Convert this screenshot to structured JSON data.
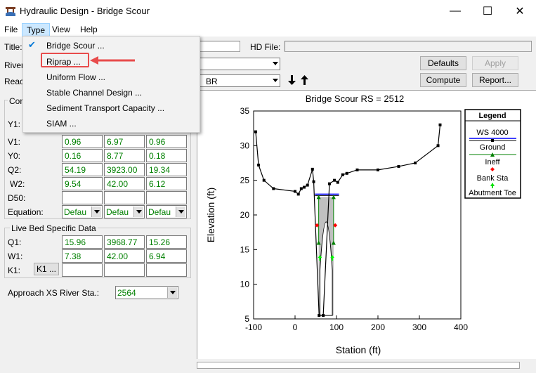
{
  "window": {
    "title": "Hydraulic Design - Bridge Scour",
    "minimize": "—",
    "maximize": "☐",
    "close": "✕"
  },
  "menubar": {
    "file": "File",
    "type": "Type",
    "view": "View",
    "help": "Help"
  },
  "header": {
    "title_label": "Title:",
    "hd_file_label": "HD File:",
    "river_label": "River",
    "reach_label": "Reach",
    "reach_value": "BR",
    "defaults": "Defaults",
    "apply": "Apply",
    "compute": "Compute",
    "report": "Report..."
  },
  "type_menu": {
    "items": [
      {
        "label": "Bridge Scour ...",
        "checked": true
      },
      {
        "label": "Riprap ..."
      },
      {
        "label": "Uniform Flow ..."
      },
      {
        "label": "Stable Channel Design ..."
      },
      {
        "label": "Sediment Transport Capacity ..."
      },
      {
        "label": "SIAM ..."
      }
    ]
  },
  "left_panel": {
    "group_title_partial": "Con",
    "rows": [
      {
        "label": "Y1:",
        "values": [
          "",
          "",
          ""
        ]
      },
      {
        "label": "V1:",
        "values": [
          "0.96",
          "6.97",
          "0.96"
        ]
      },
      {
        "label": "Y0:",
        "values": [
          "0.16",
          "8.77",
          "0.18"
        ]
      },
      {
        "label": "Q2:",
        "values": [
          "54.19",
          "3923.00",
          "19.34"
        ]
      },
      {
        "label": "W2:",
        "values": [
          "9.54",
          "42.00",
          "6.12"
        ]
      },
      {
        "label": "D50:",
        "values": [
          "",
          "",
          ""
        ]
      }
    ],
    "equation_label": "Equation:",
    "equation_values": [
      "Defau",
      "Defau",
      "Defau"
    ],
    "live_bed_title": "Live Bed Specific Data",
    "live_rows": [
      {
        "label": "Q1:",
        "values": [
          "15.96",
          "3968.77",
          "15.26"
        ]
      },
      {
        "label": "W1:",
        "values": [
          "7.38",
          "42.00",
          "6.94"
        ]
      },
      {
        "label": "K1:",
        "values": [
          "",
          "",
          ""
        ]
      }
    ],
    "k1_button": "K1 ...",
    "approach_label": "Approach XS River Sta.:",
    "approach_value": "2564"
  },
  "colors": {
    "ground": "#000000",
    "ws": "#0000ff",
    "ineff": "#008000",
    "bank": "#ff0000",
    "abutment": "#00ff00",
    "fill": "#c0c0c0",
    "highlight": "#e84c4c"
  },
  "chart_data": {
    "type": "line",
    "title": "Bridge Scour RS = 2512",
    "xlabel": "Station (ft)",
    "ylabel": "Elevation (ft)",
    "xlim": [
      -100,
      400
    ],
    "ylim": [
      5,
      35
    ],
    "xticks": [
      -100,
      0,
      100,
      200,
      300,
      400
    ],
    "yticks": [
      5,
      10,
      15,
      20,
      25,
      30,
      35
    ],
    "legend": {
      "title": "Legend",
      "placement": "right",
      "entries": [
        "WS 4000",
        "Ground",
        "Ineff",
        "Bank Sta",
        "Abutment Toe"
      ]
    },
    "series": [
      {
        "name": "Ground",
        "x": [
          -95,
          -88,
          -75,
          -52,
          0,
          8,
          15,
          22,
          30,
          42,
          45,
          58,
          68,
          83,
          95,
          103,
          115,
          125,
          150,
          200,
          250,
          290,
          345,
          350
        ],
        "y": [
          32,
          27.2,
          25,
          23.8,
          23.4,
          23,
          23.8,
          24,
          24.3,
          26.6,
          24.8,
          5.5,
          5.5,
          24.5,
          25,
          24.7,
          25.8,
          26,
          26.5,
          26.5,
          27,
          27.5,
          30,
          33
        ]
      },
      {
        "name": "WS 4000",
        "x": [
          48,
          106
        ],
        "y": [
          23,
          23
        ]
      },
      {
        "name": "Ineff",
        "x": [
          57,
          93,
          57,
          93
        ],
        "y": [
          22.6,
          22.6,
          16,
          16
        ]
      },
      {
        "name": "Bank Sta",
        "x": [
          53,
          97
        ],
        "y": [
          18.5,
          18.5
        ]
      },
      {
        "name": "Abutment Toe",
        "x": [
          60,
          90
        ],
        "y": [
          13.8,
          13.8
        ]
      }
    ]
  }
}
